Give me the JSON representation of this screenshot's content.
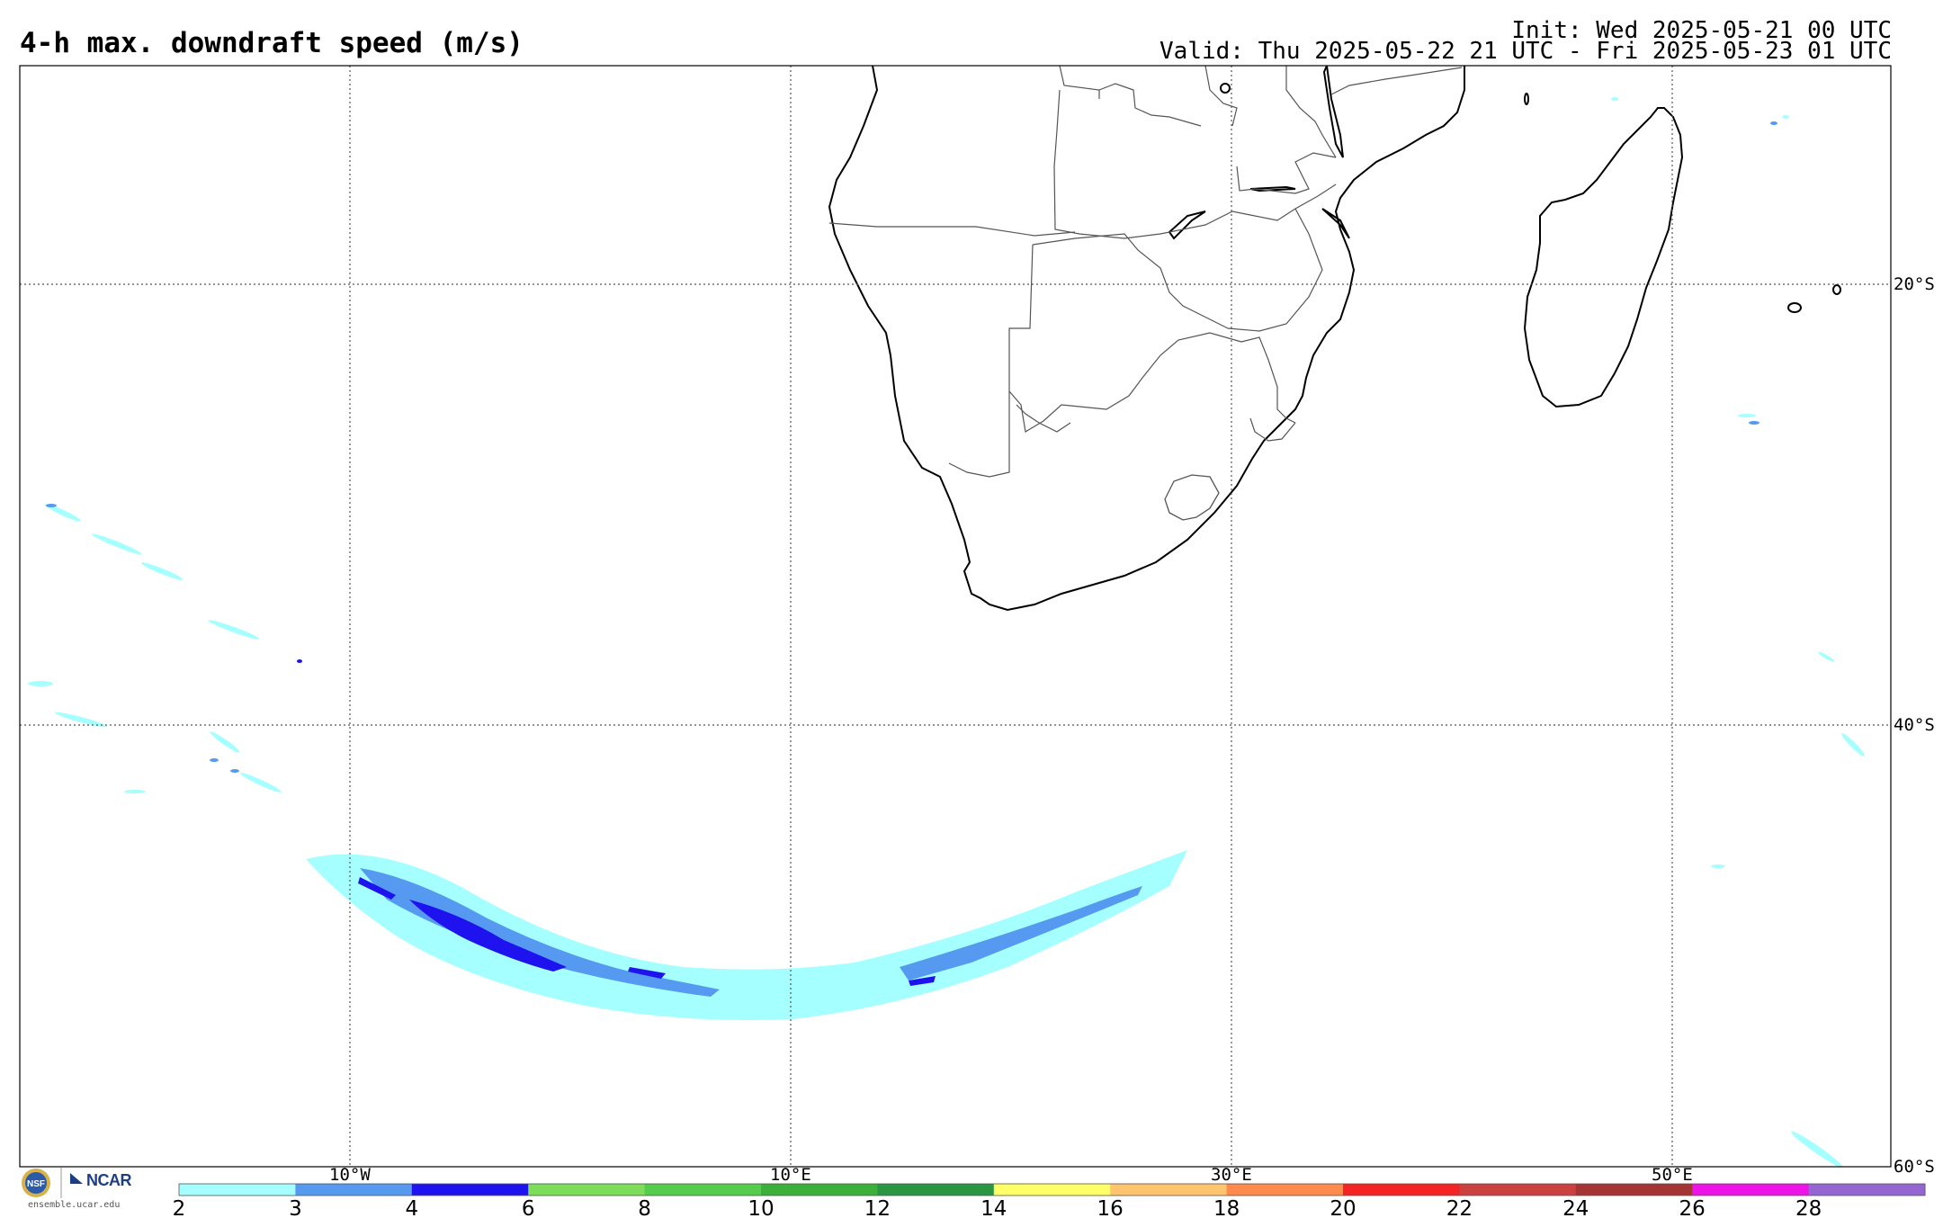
{
  "header": {
    "title": "4-h max. downdraft speed (m/s)",
    "init": "Init: Wed 2025-05-21 00 UTC",
    "valid": "Valid: Thu 2025-05-22 21 UTC - Fri 2025-05-23 01 UTC"
  },
  "map": {
    "region": "Southern Africa and South Atlantic / SW Indian Ocean",
    "longitude_labels": [
      "10°W",
      "10°E",
      "30°E",
      "50°E"
    ],
    "latitude_labels": [
      "20°S",
      "40°S",
      "60°S"
    ],
    "gridlines": "dotted",
    "colors": {
      "coast": "#000000",
      "borders": "#555555",
      "grid": "#555555"
    }
  },
  "colorbar": {
    "ticks": [
      "2",
      "3",
      "4",
      "6",
      "8",
      "10",
      "12",
      "14",
      "16",
      "18",
      "20",
      "22",
      "24",
      "26",
      "28"
    ],
    "colors": [
      "#a6ffff",
      "#5599f0",
      "#1e12ee",
      "#7ddc5a",
      "#55cc4c",
      "#3caf3c",
      "#2a9642",
      "#ffff66",
      "#ffc56e",
      "#ff8a4e",
      "#f52323",
      "#cc4040",
      "#a53434",
      "#ec14e6",
      "#9566d2"
    ]
  },
  "footer": {
    "logo_text": "NCAR",
    "site": "ensemble.ucar.edu",
    "logo_icon": "nsf-seal-icon"
  }
}
